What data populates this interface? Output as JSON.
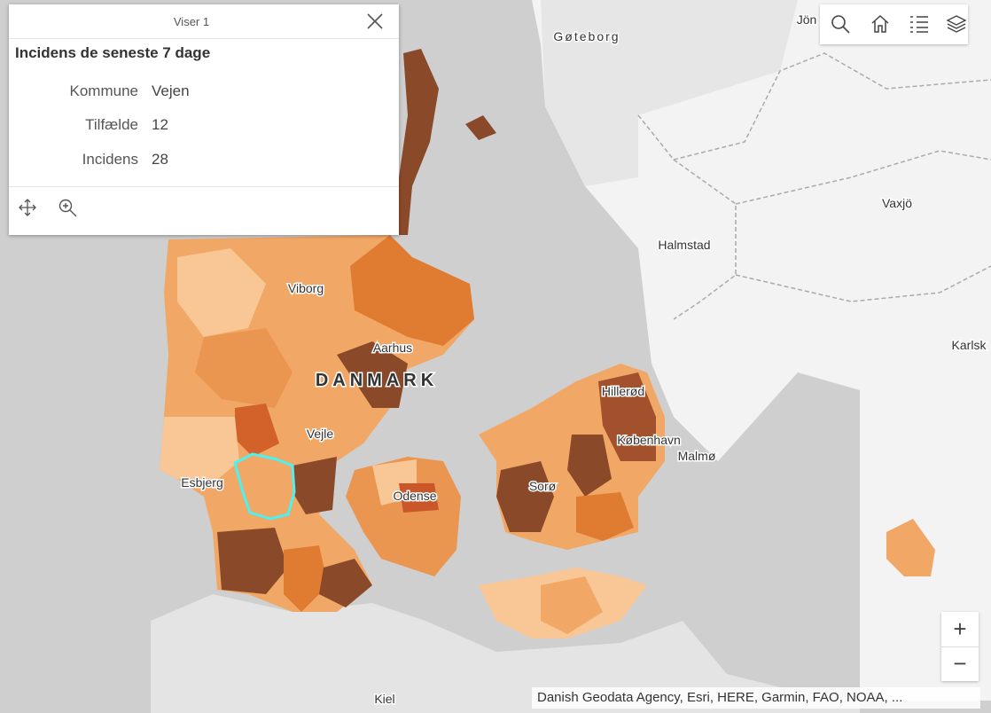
{
  "popup": {
    "pager": "Viser 1",
    "heading": "Incidens de seneste 7 dage",
    "fields": [
      {
        "label": "Kommune",
        "value": "Vejen"
      },
      {
        "label": "Tilfælde",
        "value": 12
      },
      {
        "label": "Incidens",
        "value": 28
      }
    ]
  },
  "map": {
    "labels": [
      "Gøteborg",
      "Jön",
      "Vaxjö",
      "Halmstad",
      "Karlsk",
      "Viborg",
      "Aarhus",
      "DANMARK",
      "Hillerød",
      "København",
      "Malmø",
      "Vejle",
      "Esbjerg",
      "Sorø",
      "Odense",
      "Kiel"
    ]
  },
  "zoom": {
    "in": "+",
    "out": "−"
  },
  "attribution": "Danish Geodata Agency, Esri, HERE, Garmin, FAO, NOAA, ..."
}
